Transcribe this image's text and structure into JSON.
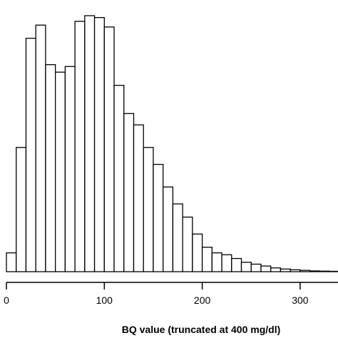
{
  "chart_data": {
    "type": "bar",
    "subtype": "histogram",
    "bin_width": 10,
    "bin_starts": [
      0,
      10,
      20,
      30,
      40,
      50,
      60,
      70,
      80,
      90,
      100,
      110,
      120,
      130,
      140,
      150,
      160,
      170,
      180,
      190,
      200,
      210,
      220,
      230,
      240,
      250,
      260,
      270,
      280,
      290,
      300,
      310,
      320,
      330,
      340
    ],
    "values": [
      10,
      66,
      124,
      131,
      110,
      106,
      109,
      133,
      136,
      135,
      130,
      99,
      84,
      78,
      66,
      57,
      45,
      36,
      29,
      20,
      13,
      10,
      9,
      7,
      5,
      4,
      3,
      2,
      1.4,
      1,
      0.7,
      0.4,
      0.3,
      0.2,
      0.1
    ],
    "xlabel": "BQ value (truncated at 400 mg/dl)",
    "ylabel": "",
    "xticks": [
      0,
      100,
      200,
      300
    ],
    "xlim": [
      0,
      340
    ],
    "ylim": [
      0,
      136
    ],
    "grid": false,
    "colors": {
      "bar_fill": "#ffffff",
      "bar_stroke": "#000000"
    }
  }
}
